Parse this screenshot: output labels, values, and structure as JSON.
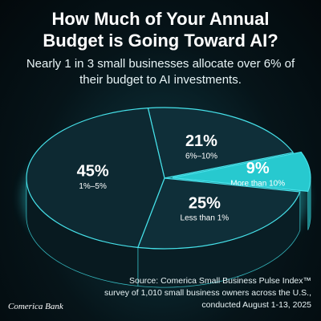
{
  "chart_data": {
    "type": "pie",
    "title": "How Much of Your Annual Budget is Going Toward AI?",
    "subtitle": "Nearly 1 in 3 small businesses allocate over 6% of their budget to AI investments.",
    "categories": [
      "6%–10%",
      "More than 10%",
      "Less than 1%",
      "1%–5%"
    ],
    "values": [
      21,
      9,
      25,
      45
    ],
    "value_labels": [
      "21%",
      "9%",
      "25%",
      "45%"
    ],
    "colors": [
      "#0f2f39",
      "#27c9cf",
      "#0f2f39",
      "#0d2932"
    ],
    "source": [
      "Source: Comerica Small Business Pulse Index™",
      "survey of 1,010 small business owners across the U.S.,",
      "conducted August 1-13, 2025"
    ],
    "logo": "Comerica Bank"
  }
}
